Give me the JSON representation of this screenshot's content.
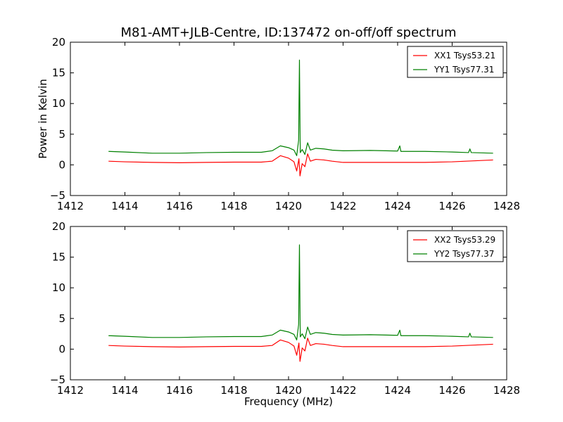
{
  "chart_data": {
    "type": "line",
    "title": "M81-AMT+JLB-Centre, ID:137472 on-off/off spectrum",
    "xlabel": "Frequency (MHz)",
    "ylabel": "Power in Kelvin",
    "xlim": [
      1412,
      1428
    ],
    "ylim": [
      -5,
      20
    ],
    "x_ticks": [
      "1412",
      "1414",
      "1416",
      "1418",
      "1420",
      "1422",
      "1424",
      "1426",
      "1428"
    ],
    "y_ticks": [
      "−5",
      "0",
      "5",
      "10",
      "15",
      "20"
    ],
    "legend_position": "top-right",
    "panels": [
      {
        "series": [
          {
            "name": "XX1 Tsys53.21",
            "color": "#ff0000",
            "points": [
              [
                1413.4,
                0.6
              ],
              [
                1414.0,
                0.5
              ],
              [
                1415.0,
                0.4
              ],
              [
                1416.0,
                0.35
              ],
              [
                1417.0,
                0.4
              ],
              [
                1418.0,
                0.45
              ],
              [
                1419.0,
                0.45
              ],
              [
                1419.4,
                0.6
              ],
              [
                1419.7,
                1.5
              ],
              [
                1420.0,
                1.1
              ],
              [
                1420.2,
                0.5
              ],
              [
                1420.3,
                -1.0
              ],
              [
                1420.38,
                1.0
              ],
              [
                1420.42,
                -1.8
              ],
              [
                1420.5,
                0.2
              ],
              [
                1420.6,
                -0.3
              ],
              [
                1420.7,
                1.8
              ],
              [
                1420.8,
                0.6
              ],
              [
                1421.0,
                0.9
              ],
              [
                1421.3,
                0.8
              ],
              [
                1421.6,
                0.6
              ],
              [
                1422.0,
                0.4
              ],
              [
                1423.0,
                0.4
              ],
              [
                1424.0,
                0.4
              ],
              [
                1425.0,
                0.4
              ],
              [
                1426.0,
                0.5
              ],
              [
                1426.5,
                0.6
              ],
              [
                1427.0,
                0.7
              ],
              [
                1427.5,
                0.8
              ]
            ]
          },
          {
            "name": "YY1 Tsys77.31",
            "color": "#008000",
            "points": [
              [
                1413.4,
                2.2
              ],
              [
                1414.0,
                2.1
              ],
              [
                1415.0,
                1.9
              ],
              [
                1416.0,
                1.9
              ],
              [
                1417.0,
                2.0
              ],
              [
                1418.0,
                2.05
              ],
              [
                1419.0,
                2.05
              ],
              [
                1419.4,
                2.3
              ],
              [
                1419.7,
                3.1
              ],
              [
                1420.0,
                2.8
              ],
              [
                1420.2,
                2.4
              ],
              [
                1420.3,
                1.5
              ],
              [
                1420.37,
                4.0
              ],
              [
                1420.4,
                17.1
              ],
              [
                1420.43,
                2.0
              ],
              [
                1420.5,
                2.5
              ],
              [
                1420.6,
                1.7
              ],
              [
                1420.7,
                3.6
              ],
              [
                1420.8,
                2.4
              ],
              [
                1421.0,
                2.7
              ],
              [
                1421.3,
                2.6
              ],
              [
                1421.6,
                2.4
              ],
              [
                1422.0,
                2.3
              ],
              [
                1423.0,
                2.35
              ],
              [
                1424.0,
                2.25
              ],
              [
                1424.08,
                3.1
              ],
              [
                1424.12,
                2.2
              ],
              [
                1425.0,
                2.2
              ],
              [
                1426.0,
                2.1
              ],
              [
                1426.6,
                2.0
              ],
              [
                1426.65,
                2.6
              ],
              [
                1426.7,
                2.0
              ],
              [
                1427.5,
                1.9
              ]
            ]
          }
        ]
      },
      {
        "series": [
          {
            "name": "XX2 Tsys53.29",
            "color": "#ff0000",
            "points": [
              [
                1413.4,
                0.6
              ],
              [
                1414.0,
                0.5
              ],
              [
                1415.0,
                0.4
              ],
              [
                1416.0,
                0.35
              ],
              [
                1417.0,
                0.4
              ],
              [
                1418.0,
                0.45
              ],
              [
                1419.0,
                0.45
              ],
              [
                1419.4,
                0.6
              ],
              [
                1419.7,
                1.5
              ],
              [
                1420.0,
                1.1
              ],
              [
                1420.2,
                0.5
              ],
              [
                1420.3,
                -1.0
              ],
              [
                1420.38,
                1.0
              ],
              [
                1420.42,
                -2.0
              ],
              [
                1420.5,
                0.2
              ],
              [
                1420.6,
                -0.3
              ],
              [
                1420.7,
                1.8
              ],
              [
                1420.8,
                0.6
              ],
              [
                1421.0,
                0.9
              ],
              [
                1421.3,
                0.8
              ],
              [
                1421.6,
                0.6
              ],
              [
                1422.0,
                0.4
              ],
              [
                1423.0,
                0.4
              ],
              [
                1424.0,
                0.4
              ],
              [
                1425.0,
                0.4
              ],
              [
                1426.0,
                0.5
              ],
              [
                1426.5,
                0.6
              ],
              [
                1427.0,
                0.7
              ],
              [
                1427.5,
                0.8
              ]
            ]
          },
          {
            "name": "YY2 Tsys77.37",
            "color": "#008000",
            "points": [
              [
                1413.4,
                2.2
              ],
              [
                1414.0,
                2.1
              ],
              [
                1415.0,
                1.9
              ],
              [
                1416.0,
                1.9
              ],
              [
                1417.0,
                2.0
              ],
              [
                1418.0,
                2.05
              ],
              [
                1419.0,
                2.05
              ],
              [
                1419.4,
                2.3
              ],
              [
                1419.7,
                3.1
              ],
              [
                1420.0,
                2.8
              ],
              [
                1420.2,
                2.4
              ],
              [
                1420.3,
                1.5
              ],
              [
                1420.37,
                4.0
              ],
              [
                1420.4,
                17.0
              ],
              [
                1420.43,
                2.0
              ],
              [
                1420.5,
                2.5
              ],
              [
                1420.6,
                1.7
              ],
              [
                1420.7,
                3.6
              ],
              [
                1420.8,
                2.4
              ],
              [
                1421.0,
                2.7
              ],
              [
                1421.3,
                2.6
              ],
              [
                1421.6,
                2.4
              ],
              [
                1422.0,
                2.3
              ],
              [
                1423.0,
                2.35
              ],
              [
                1424.0,
                2.25
              ],
              [
                1424.08,
                3.1
              ],
              [
                1424.12,
                2.2
              ],
              [
                1425.0,
                2.2
              ],
              [
                1426.0,
                2.1
              ],
              [
                1426.6,
                2.0
              ],
              [
                1426.65,
                2.6
              ],
              [
                1426.7,
                2.0
              ],
              [
                1427.5,
                1.9
              ]
            ]
          }
        ]
      }
    ]
  }
}
